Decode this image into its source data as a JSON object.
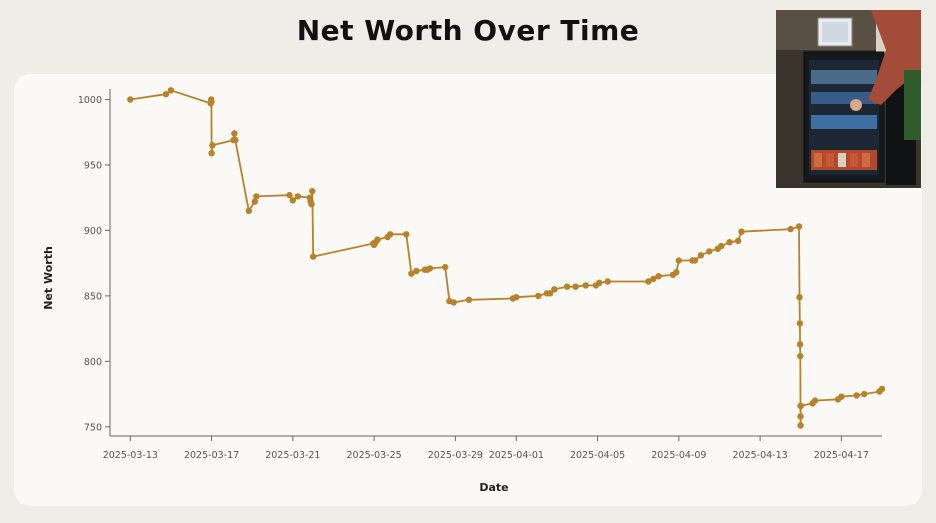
{
  "chart_data": {
    "type": "line",
    "title": "Net Worth Over Time",
    "xlabel": "Date",
    "ylabel": "Net Worth",
    "xlim": [
      "2025-03-12",
      "2025-04-19"
    ],
    "ylim": [
      743,
      1008
    ],
    "yticks": [
      750,
      800,
      850,
      900,
      950,
      1000
    ],
    "xticks": [
      "2025-03-13",
      "2025-03-17",
      "2025-03-21",
      "2025-03-25",
      "2025-03-29",
      "2025-04-01",
      "2025-04-05",
      "2025-04-09",
      "2025-04-13",
      "2025-04-17"
    ],
    "grid": false,
    "color": "#b8822a",
    "series": [
      {
        "x": [
          "2025-03-13",
          "2025-03-14 18:00",
          "2025-03-15",
          "2025-03-16 23:00",
          "2025-03-16 23:30",
          "2025-03-16 23:45",
          "2025-03-17",
          "2025-03-17 01:00",
          "2025-03-18 02:00",
          "2025-03-18 03:00",
          "2025-03-18 04:00",
          "2025-03-18 20:00",
          "2025-03-19 03:00",
          "2025-03-19 05:00",
          "2025-03-20 20:00",
          "2025-03-21",
          "2025-03-21 06:00",
          "2025-03-21 20:00",
          "2025-03-21 21:00",
          "2025-03-21 22:00",
          "2025-03-21 23:00",
          "2025-03-22",
          "2025-03-24 23:00",
          "2025-03-25",
          "2025-03-25 02:00",
          "2025-03-25 04:00",
          "2025-03-25 16:00",
          "2025-03-25 19:00",
          "2025-03-26 14:00",
          "2025-03-26 20:00",
          "2025-03-27 02:00",
          "2025-03-27 12:00",
          "2025-03-27 15:00",
          "2025-03-27 18:00",
          "2025-03-28 12:00",
          "2025-03-28 17:00",
          "2025-03-28 22:00",
          "2025-03-29 16:00",
          "2025-03-31 20:00",
          "2025-04-01 00:00",
          "2025-04-02 02:00",
          "2025-04-02 12:00",
          "2025-04-02 16:00",
          "2025-04-02 21:00",
          "2025-04-03 12:00",
          "2025-04-03 22:00",
          "2025-04-04 10:00",
          "2025-04-04 22:00",
          "2025-04-05 02:00",
          "2025-04-05 12:00",
          "2025-04-07 12:00",
          "2025-04-07 18:00",
          "2025-04-08 00:00",
          "2025-04-08 17:00",
          "2025-04-08 21:00",
          "2025-04-09",
          "2025-04-09 16:00",
          "2025-04-09 19:00",
          "2025-04-10 02:00",
          "2025-04-10 12:00",
          "2025-04-10 22:00",
          "2025-04-11 02:00",
          "2025-04-11 12:00",
          "2025-04-11 22:00",
          "2025-04-12 02:00",
          "2025-04-14 12:00",
          "2025-04-14 22:00",
          "2025-04-14 22:30",
          "2025-04-14 23:00",
          "2025-04-14 23:15",
          "2025-04-14 23:30",
          "2025-04-14 23:40",
          "2025-04-14 23:45",
          "2025-04-14 23:50",
          "2025-04-14 23:55",
          "2025-04-15",
          "2025-04-15 14:00",
          "2025-04-15 17:00",
          "2025-04-16 20:00",
          "2025-04-17 00:00",
          "2025-04-17 18:00",
          "2025-04-18 03:00",
          "2025-04-18 21:00",
          "2025-04-19 00:00"
        ],
        "values": [
          1000,
          1004,
          1007,
          997,
          1000,
          998,
          959,
          965,
          969,
          974,
          969,
          915,
          922,
          926,
          927,
          923,
          926,
          925,
          922,
          920,
          930,
          880,
          890,
          889,
          891,
          893,
          895,
          897,
          897,
          867,
          869,
          870,
          870,
          871,
          872,
          846,
          845,
          847,
          848,
          849,
          850,
          852,
          852,
          855,
          857,
          857,
          858,
          858,
          860,
          861,
          861,
          863,
          865,
          866,
          868,
          877,
          877,
          877,
          881,
          884,
          886,
          888,
          891,
          892,
          899,
          901,
          903,
          849,
          829,
          813,
          804,
          766,
          758,
          751,
          766,
          766,
          768,
          770,
          771,
          773,
          774,
          775,
          777,
          779
        ]
      }
    ]
  },
  "photo": {
    "icon": "fridge-vending-machine-photo"
  }
}
